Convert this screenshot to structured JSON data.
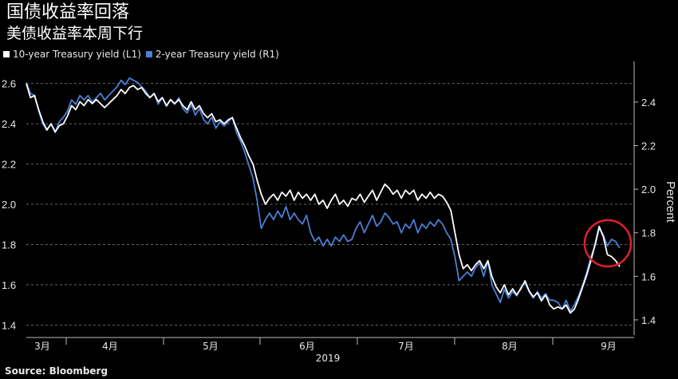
{
  "header": {
    "title": "国债收益率回落",
    "subtitle": "美债收益率本周下行"
  },
  "source": "Source: Bloomberg",
  "colors": {
    "background": "#000000",
    "series_10y": "#ffffff",
    "series_2y": "#4a7fd4",
    "grid": "#666666",
    "highlight_circle": "#e0202a"
  },
  "chart_data": {
    "type": "line",
    "x_axis": {
      "month_labels": [
        "3月",
        "4月",
        "5月",
        "6月",
        "7月",
        "8月",
        "9月"
      ],
      "year_label": "2019"
    },
    "left_axis": {
      "ticks": [
        "2.6",
        "2.4",
        "2.2",
        "2.0",
        "1.8",
        "1.6",
        "1.4"
      ],
      "ylim": [
        1.35,
        2.67
      ]
    },
    "right_axis": {
      "ticks": [
        "2.4",
        "2.2",
        "2.0",
        "1.8",
        "1.6",
        "1.4"
      ],
      "label": "Percent",
      "ylim": [
        1.33,
        2.55
      ]
    },
    "grid": "horizontal dashed",
    "legend_position": "top-left",
    "series": [
      {
        "name": "10-year Treasury yield (L1)",
        "axis": "left",
        "values": [
          2.6,
          2.53,
          2.54,
          2.47,
          2.41,
          2.37,
          2.4,
          2.36,
          2.39,
          2.4,
          2.44,
          2.49,
          2.47,
          2.51,
          2.49,
          2.52,
          2.5,
          2.52,
          2.5,
          2.48,
          2.5,
          2.52,
          2.54,
          2.57,
          2.55,
          2.58,
          2.59,
          2.57,
          2.58,
          2.55,
          2.53,
          2.55,
          2.51,
          2.53,
          2.49,
          2.52,
          2.5,
          2.52,
          2.49,
          2.47,
          2.51,
          2.47,
          2.49,
          2.45,
          2.43,
          2.45,
          2.41,
          2.42,
          2.4,
          2.42,
          2.43,
          2.38,
          2.33,
          2.29,
          2.24,
          2.2,
          2.12,
          2.05,
          2.0,
          2.03,
          2.05,
          2.02,
          2.06,
          2.04,
          2.07,
          2.02,
          2.06,
          2.03,
          2.05,
          2.02,
          2.05,
          2.0,
          2.02,
          1.98,
          2.02,
          2.05,
          2.0,
          2.02,
          1.99,
          2.03,
          2.02,
          2.05,
          2.01,
          2.04,
          2.07,
          2.02,
          2.06,
          2.1,
          2.08,
          2.05,
          2.07,
          2.03,
          2.07,
          2.05,
          2.07,
          2.02,
          2.05,
          2.03,
          2.06,
          2.03,
          2.05,
          2.04,
          2.01,
          1.97,
          1.86,
          1.75,
          1.68,
          1.7,
          1.67,
          1.7,
          1.72,
          1.68,
          1.72,
          1.64,
          1.59,
          1.56,
          1.6,
          1.55,
          1.58,
          1.55,
          1.58,
          1.62,
          1.57,
          1.54,
          1.56,
          1.52,
          1.55,
          1.5,
          1.48,
          1.49,
          1.48,
          1.5,
          1.46,
          1.48,
          1.53,
          1.59,
          1.65,
          1.72,
          1.8,
          1.89,
          1.84,
          1.75,
          1.74,
          1.72,
          1.69
        ]
      },
      {
        "name": "2-year Treasury yield (R1)",
        "axis": "right",
        "values": [
          2.49,
          2.44,
          2.43,
          2.36,
          2.3,
          2.27,
          2.3,
          2.26,
          2.31,
          2.33,
          2.36,
          2.41,
          2.39,
          2.43,
          2.41,
          2.43,
          2.4,
          2.42,
          2.44,
          2.41,
          2.43,
          2.45,
          2.47,
          2.5,
          2.48,
          2.51,
          2.5,
          2.49,
          2.47,
          2.45,
          2.42,
          2.44,
          2.39,
          2.42,
          2.38,
          2.41,
          2.39,
          2.42,
          2.37,
          2.35,
          2.39,
          2.34,
          2.37,
          2.32,
          2.3,
          2.33,
          2.28,
          2.31,
          2.29,
          2.31,
          2.33,
          2.26,
          2.22,
          2.17,
          2.11,
          2.05,
          1.95,
          1.82,
          1.86,
          1.89,
          1.86,
          1.9,
          1.87,
          1.92,
          1.86,
          1.89,
          1.86,
          1.84,
          1.88,
          1.8,
          1.76,
          1.78,
          1.74,
          1.77,
          1.74,
          1.78,
          1.76,
          1.79,
          1.76,
          1.77,
          1.82,
          1.85,
          1.8,
          1.84,
          1.88,
          1.83,
          1.85,
          1.89,
          1.87,
          1.84,
          1.85,
          1.8,
          1.84,
          1.82,
          1.86,
          1.8,
          1.84,
          1.82,
          1.85,
          1.83,
          1.86,
          1.84,
          1.8,
          1.77,
          1.69,
          1.58,
          1.6,
          1.62,
          1.6,
          1.64,
          1.66,
          1.6,
          1.67,
          1.56,
          1.52,
          1.48,
          1.54,
          1.5,
          1.53,
          1.51,
          1.55,
          1.57,
          1.53,
          1.5,
          1.53,
          1.5,
          1.52,
          1.49,
          1.49,
          1.48,
          1.45,
          1.49,
          1.44,
          1.47,
          1.51,
          1.56,
          1.62,
          1.69,
          1.74,
          1.82,
          1.79,
          1.74,
          1.77,
          1.76,
          1.73
        ]
      }
    ]
  }
}
